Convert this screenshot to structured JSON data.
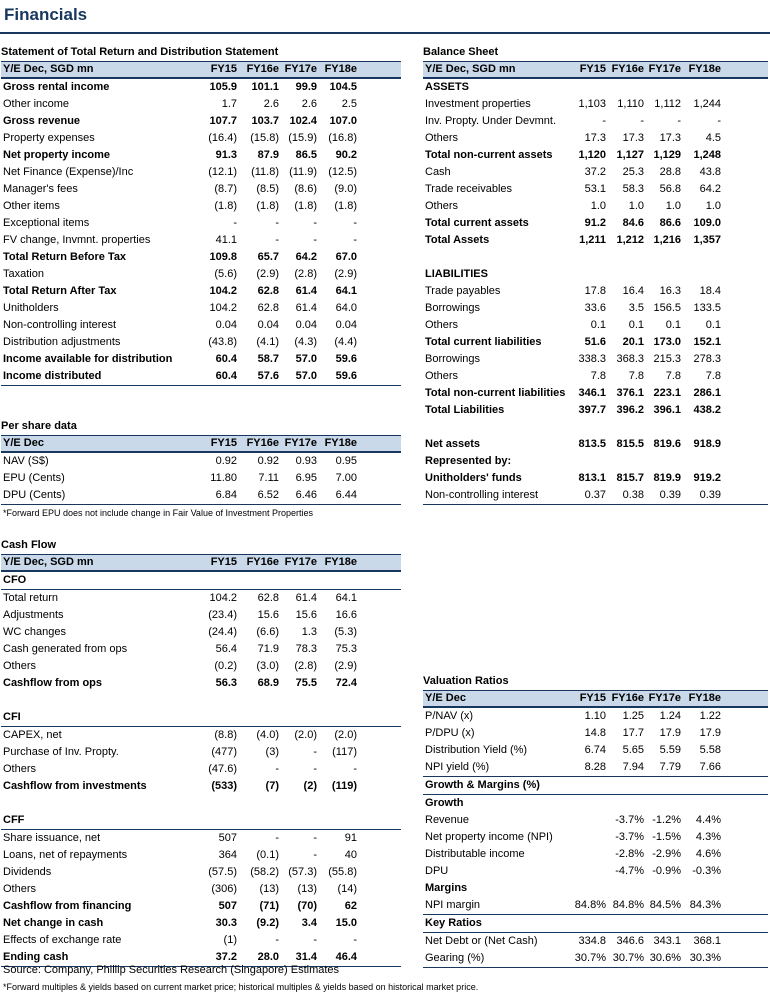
{
  "title": "Financials",
  "left_tables": [
    {
      "key": "income",
      "title": "Statement of Total Return and Distribution Statement",
      "header": {
        "label": "Y/E Dec, SGD mn",
        "cols": [
          "FY15",
          "FY16e",
          "FY17e",
          "FY18e"
        ]
      },
      "rows": [
        {
          "label": "Gross rental income",
          "vals": [
            "105.9",
            "101.1",
            "99.9",
            "104.5"
          ],
          "bold": true
        },
        {
          "label": "Other income",
          "vals": [
            "1.7",
            "2.6",
            "2.6",
            "2.5"
          ]
        },
        {
          "label": "Gross revenue",
          "vals": [
            "107.7",
            "103.7",
            "102.4",
            "107.0"
          ],
          "bold": true
        },
        {
          "label": "Property expenses",
          "vals": [
            "(16.4)",
            "(15.8)",
            "(15.9)",
            "(16.8)"
          ]
        },
        {
          "label": "Net property income",
          "vals": [
            "91.3",
            "87.9",
            "86.5",
            "90.2"
          ],
          "bold": true
        },
        {
          "label": "Net Finance (Expense)/Inc",
          "vals": [
            "(12.1)",
            "(11.8)",
            "(11.9)",
            "(12.5)"
          ]
        },
        {
          "label": "Manager's fees",
          "vals": [
            "(8.7)",
            "(8.5)",
            "(8.6)",
            "(9.0)"
          ]
        },
        {
          "label": "Other items",
          "vals": [
            "(1.8)",
            "(1.8)",
            "(1.8)",
            "(1.8)"
          ]
        },
        {
          "label": "Exceptional items",
          "vals": [
            "-",
            "-",
            "-",
            "-"
          ]
        },
        {
          "label": "FV change, Invmnt. properties",
          "vals": [
            "41.1",
            "-",
            "-",
            "-"
          ]
        },
        {
          "label": "Total Return Before Tax",
          "vals": [
            "109.8",
            "65.7",
            "64.2",
            "67.0"
          ],
          "bold": true
        },
        {
          "label": "Taxation",
          "vals": [
            "(5.6)",
            "(2.9)",
            "(2.8)",
            "(2.9)"
          ]
        },
        {
          "label": "Total Return After Tax",
          "vals": [
            "104.2",
            "62.8",
            "61.4",
            "64.1"
          ],
          "bold": true
        },
        {
          "label": "Unitholders",
          "vals": [
            "104.2",
            "62.8",
            "61.4",
            "64.0"
          ]
        },
        {
          "label": "Non-controlling interest",
          "vals": [
            "0.04",
            "0.04",
            "0.04",
            "0.04"
          ]
        },
        {
          "label": "Distribution adjustments",
          "vals": [
            "(43.8)",
            "(4.1)",
            "(4.3)",
            "(4.4)"
          ]
        },
        {
          "label": "Income available for distribution",
          "vals": [
            "60.4",
            "58.7",
            "57.0",
            "59.6"
          ],
          "bold": true
        },
        {
          "label": "Income distributed",
          "vals": [
            "60.4",
            "57.6",
            "57.0",
            "59.6"
          ],
          "bold": true,
          "line": true
        }
      ]
    },
    {
      "key": "pershare",
      "title": "Per share data",
      "header": {
        "label": "Y/E Dec",
        "cols": [
          "FY15",
          "FY16e",
          "FY17e",
          "FY18e"
        ]
      },
      "rows": [
        {
          "label": "NAV (S$)",
          "vals": [
            "0.92",
            "0.92",
            "0.93",
            "0.95"
          ]
        },
        {
          "label": "EPU (Cents)",
          "vals": [
            "11.80",
            "7.11",
            "6.95",
            "7.00"
          ]
        },
        {
          "label": "DPU (Cents)",
          "vals": [
            "6.84",
            "6.52",
            "6.46",
            "6.44"
          ],
          "line": true
        }
      ]
    },
    {
      "key": "cashflow",
      "title": "Cash Flow",
      "header": {
        "label": "Y/E Dec, SGD mn",
        "cols": [
          "FY15",
          "FY16e",
          "FY17e",
          "FY18e"
        ]
      },
      "rows": [
        {
          "label": "CFO",
          "vals": [
            "",
            "",
            "",
            ""
          ],
          "sec": true
        },
        {
          "label": "Total return",
          "vals": [
            "104.2",
            "62.8",
            "61.4",
            "64.1"
          ]
        },
        {
          "label": "Adjustments",
          "vals": [
            "(23.4)",
            "15.6",
            "15.6",
            "16.6"
          ]
        },
        {
          "label": "WC changes",
          "vals": [
            "(24.4)",
            "(6.6)",
            "1.3",
            "(5.3)"
          ]
        },
        {
          "label": "Cash generated from ops",
          "vals": [
            "56.4",
            "71.9",
            "78.3",
            "75.3"
          ]
        },
        {
          "label": "Others",
          "vals": [
            "(0.2)",
            "(3.0)",
            "(2.8)",
            "(2.9)"
          ]
        },
        {
          "label": "Cashflow from ops",
          "vals": [
            "56.3",
            "68.9",
            "75.5",
            "72.4"
          ],
          "bold": true
        },
        {
          "label": "",
          "vals": [
            "",
            "",
            "",
            ""
          ]
        },
        {
          "label": "CFI",
          "vals": [
            "",
            "",
            "",
            ""
          ],
          "sec": true
        },
        {
          "label": "CAPEX, net",
          "vals": [
            "(8.8)",
            "(4.0)",
            "(2.0)",
            "(2.0)"
          ]
        },
        {
          "label": "Purchase of Inv. Propty.",
          "vals": [
            "(477)",
            "(3)",
            "-",
            "(117)"
          ]
        },
        {
          "label": "Others",
          "vals": [
            "(47.6)",
            "-",
            "-",
            "-"
          ]
        },
        {
          "label": "Cashflow from investments",
          "vals": [
            "(533)",
            "(7)",
            "(2)",
            "(119)"
          ],
          "bold": true
        },
        {
          "label": "",
          "vals": [
            "",
            "",
            "",
            ""
          ]
        },
        {
          "label": "CFF",
          "vals": [
            "",
            "",
            "",
            ""
          ],
          "sec": true
        },
        {
          "label": "Share issuance, net",
          "vals": [
            "507",
            "-",
            "-",
            "91"
          ]
        },
        {
          "label": "Loans, net of repayments",
          "vals": [
            "364",
            "(0.1)",
            "-",
            "40"
          ]
        },
        {
          "label": "Dividends",
          "vals": [
            "(57.5)",
            "(58.2)",
            "(57.3)",
            "(55.8)"
          ]
        },
        {
          "label": "Others",
          "vals": [
            "(306)",
            "(13)",
            "(13)",
            "(14)"
          ]
        },
        {
          "label": "Cashflow from financing",
          "vals": [
            "507",
            "(71)",
            "(70)",
            "62"
          ],
          "bold": true
        },
        {
          "label": "Net change in cash",
          "vals": [
            "30.3",
            "(9.2)",
            "3.4",
            "15.0"
          ],
          "bold": true
        },
        {
          "label": "Effects of exchange rate",
          "vals": [
            "(1)",
            "-",
            "-",
            "-"
          ]
        },
        {
          "label": "Ending cash",
          "vals": [
            "37.2",
            "28.0",
            "31.4",
            "46.4"
          ],
          "bold": true,
          "line": true
        }
      ]
    }
  ],
  "right_tables": [
    {
      "key": "balance",
      "title": "Balance Sheet",
      "header": {
        "label": "Y/E Dec, SGD mn",
        "cols": [
          "FY15",
          "FY16e",
          "FY17e",
          "FY18e"
        ]
      },
      "rows": [
        {
          "label": "ASSETS",
          "vals": [
            "",
            "",
            "",
            ""
          ],
          "bold": true
        },
        {
          "label": "Investment properties",
          "vals": [
            "1,103",
            "1,110",
            "1,112",
            "1,244"
          ]
        },
        {
          "label": "Inv. Propty. Under Devmnt.",
          "vals": [
            "-",
            "-",
            "-",
            "-"
          ]
        },
        {
          "label": "Others",
          "vals": [
            "17.3",
            "17.3",
            "17.3",
            "4.5"
          ]
        },
        {
          "label": "Total non-current assets",
          "vals": [
            "1,120",
            "1,127",
            "1,129",
            "1,248"
          ],
          "bold": true
        },
        {
          "label": "Cash",
          "vals": [
            "37.2",
            "25.3",
            "28.8",
            "43.8"
          ]
        },
        {
          "label": "Trade receivables",
          "vals": [
            "53.1",
            "58.3",
            "56.8",
            "64.2"
          ]
        },
        {
          "label": "Others",
          "vals": [
            "1.0",
            "1.0",
            "1.0",
            "1.0"
          ]
        },
        {
          "label": "Total current assets",
          "vals": [
            "91.2",
            "84.6",
            "86.6",
            "109.0"
          ],
          "bold": true
        },
        {
          "label": "Total Assets",
          "vals": [
            "1,211",
            "1,212",
            "1,216",
            "1,357"
          ],
          "bold": true
        },
        {
          "label": "",
          "vals": [
            "",
            "",
            "",
            ""
          ]
        },
        {
          "label": "LIABILITIES",
          "vals": [
            "",
            "",
            "",
            ""
          ],
          "bold": true
        },
        {
          "label": "Trade payables",
          "vals": [
            "17.8",
            "16.4",
            "16.3",
            "18.4"
          ]
        },
        {
          "label": "Borrowings",
          "vals": [
            "33.6",
            "3.5",
            "156.5",
            "133.5"
          ]
        },
        {
          "label": "Others",
          "vals": [
            "0.1",
            "0.1",
            "0.1",
            "0.1"
          ]
        },
        {
          "label": "Total current liabilities",
          "vals": [
            "51.6",
            "20.1",
            "173.0",
            "152.1"
          ],
          "bold": true
        },
        {
          "label": "Borrowings",
          "vals": [
            "338.3",
            "368.3",
            "215.3",
            "278.3"
          ]
        },
        {
          "label": "Others",
          "vals": [
            "7.8",
            "7.8",
            "7.8",
            "7.8"
          ]
        },
        {
          "label": "Total non-current liabilities",
          "vals": [
            "346.1",
            "376.1",
            "223.1",
            "286.1"
          ],
          "bold": true
        },
        {
          "label": "Total Liabilities",
          "vals": [
            "397.7",
            "396.2",
            "396.1",
            "438.2"
          ],
          "bold": true
        },
        {
          "label": "",
          "vals": [
            "",
            "",
            "",
            ""
          ]
        },
        {
          "label": "Net assets",
          "vals": [
            "813.5",
            "815.5",
            "819.6",
            "918.9"
          ],
          "bold": true
        },
        {
          "label": "Represented by:",
          "vals": [
            "",
            "",
            "",
            ""
          ],
          "bold": true
        },
        {
          "label": "Unitholders' funds",
          "vals": [
            "813.1",
            "815.7",
            "819.9",
            "919.2"
          ],
          "bold": true
        },
        {
          "label": "Non-controlling interest",
          "vals": [
            "0.37",
            "0.38",
            "0.39",
            "0.39"
          ],
          "line": true
        }
      ]
    },
    {
      "key": "valuation",
      "title": "Valuation Ratios",
      "header": {
        "label": "Y/E Dec",
        "cols": [
          "FY15",
          "FY16e",
          "FY17e",
          "FY18e"
        ]
      },
      "rows": [
        {
          "label": "P/NAV (x)",
          "vals": [
            "1.10",
            "1.25",
            "1.24",
            "1.22"
          ]
        },
        {
          "label": "P/DPU (x)",
          "vals": [
            "14.8",
            "17.7",
            "17.9",
            "17.9"
          ]
        },
        {
          "label": "Distribution Yield (%)",
          "vals": [
            "6.74",
            "5.65",
            "5.59",
            "5.58"
          ]
        },
        {
          "label": "NPI yield (%)",
          "vals": [
            "8.28",
            "7.94",
            "7.79",
            "7.66"
          ]
        },
        {
          "label": "Growth & Margins (%)",
          "vals": [
            "",
            "",
            "",
            ""
          ],
          "sec": true,
          "top": true
        },
        {
          "label": "Growth",
          "vals": [
            "",
            "",
            "",
            ""
          ],
          "bold": true
        },
        {
          "label": "Revenue",
          "vals": [
            "",
            "-3.7%",
            "-1.2%",
            "4.4%"
          ]
        },
        {
          "label": "Net property income (NPI)",
          "vals": [
            "",
            "-3.7%",
            "-1.5%",
            "4.3%"
          ]
        },
        {
          "label": "Distributable income",
          "vals": [
            "",
            "-2.8%",
            "-2.9%",
            "4.6%"
          ]
        },
        {
          "label": "DPU",
          "vals": [
            "",
            "-4.7%",
            "-0.9%",
            "-0.3%"
          ]
        },
        {
          "label": "Margins",
          "vals": [
            "",
            "",
            "",
            ""
          ],
          "bold": true
        },
        {
          "label": "NPI margin",
          "vals": [
            "84.8%",
            "84.8%",
            "84.5%",
            "84.3%"
          ]
        },
        {
          "label": "Key Ratios",
          "vals": [
            "",
            "",
            "",
            ""
          ],
          "sec": true,
          "top": true
        },
        {
          "label": "Net Debt or (Net Cash)",
          "vals": [
            "334.8",
            "346.6",
            "343.1",
            "368.1"
          ]
        },
        {
          "label": "Gearing (%)",
          "vals": [
            "30.7%",
            "30.7%",
            "30.6%",
            "30.3%"
          ],
          "line": true
        }
      ]
    }
  ],
  "notes": {
    "eps_note": "*Forward EPU does not include change in Fair Value of Investment Properties",
    "source": "Source: Company, Phillip Securities Research (Singapore) Estimates",
    "fwd_note": "*Forward multiples & yields based on current market price; historical multiples & yields based on historical market price."
  }
}
